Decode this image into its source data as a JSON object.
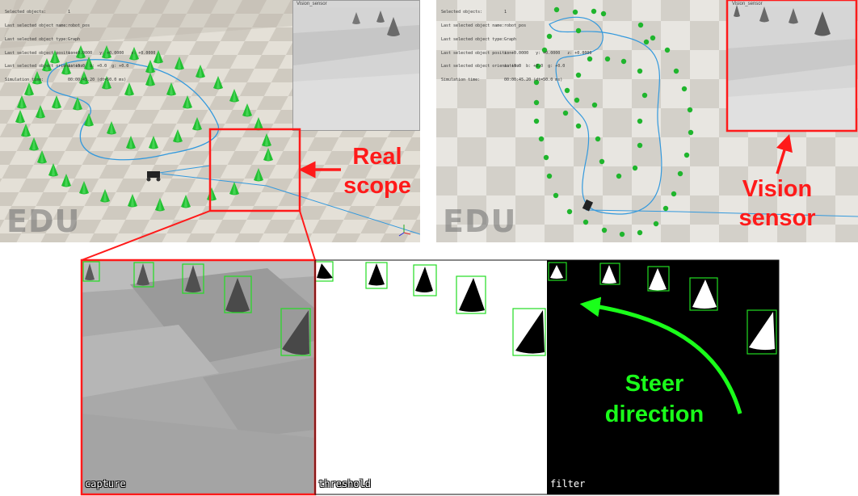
{
  "left_view": {
    "info_rows": [
      {
        "key": "Selected objects:",
        "value": "1"
      },
      {
        "key": "Last selected object name:",
        "value": "robot_pos"
      },
      {
        "key": "Last selected object type:",
        "value": "Graph"
      },
      {
        "key": "Last selected object position:",
        "value": "x: +0.0000   y: +0.0000   z: +0.0000"
      },
      {
        "key": "Last selected object orientation:",
        "value": "a: +0.0  b: +0.0  g: +0.0"
      },
      {
        "key": "Simulation time:",
        "value": "00:00:45.20 (dt=50.0 ms)"
      }
    ],
    "watermark": "EDU",
    "vision_window_title": "Vision_sensor"
  },
  "right_view": {
    "info_rows": [
      {
        "key": "Selected objects:",
        "value": "1"
      },
      {
        "key": "Last selected object name:",
        "value": "robot_pos"
      },
      {
        "key": "Last selected object type:",
        "value": "Graph"
      },
      {
        "key": "Last selected object position:",
        "value": "x: +0.0000   y: +0.0000   z: +0.0000"
      },
      {
        "key": "Last selected object orientation:",
        "value": "a: +0.0  b: +0.0  g: +0.0"
      },
      {
        "key": "Simulation time:",
        "value": "00:00:45.20 (dt=50.0 ms)"
      }
    ],
    "watermark": "EDU",
    "vision_window_title": "Vision_sensor"
  },
  "annotations": {
    "real_scope_line1": "Real",
    "real_scope_line2": "scope",
    "vision_sensor_line1": "Vision",
    "vision_sensor_line2": "sensor",
    "steer_line1": "Steer",
    "steer_line2": "direction"
  },
  "panels": {
    "capture_label": "capture",
    "threshold_label": "threshold",
    "filter_label": "filter"
  },
  "colors": {
    "annotation_red": "#ff1a1a",
    "steer_green": "#1aff1a",
    "cone_green": "#22c032",
    "path_blue": "#3399dd",
    "bbox_green": "#22dd22"
  }
}
